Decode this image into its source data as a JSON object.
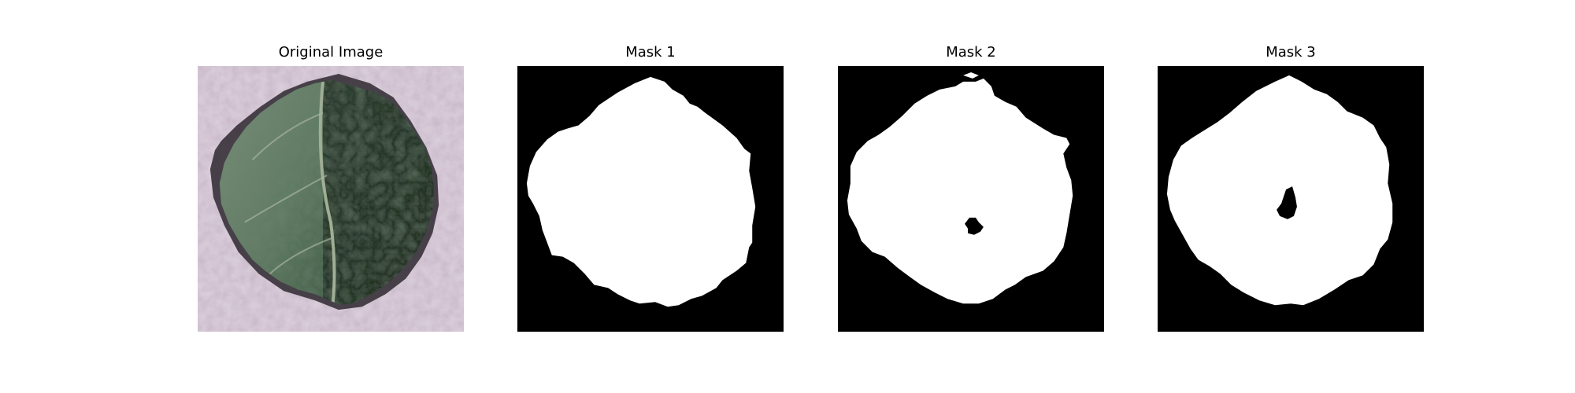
{
  "figure": {
    "panels": [
      {
        "title": "Original Image",
        "kind": "photo",
        "subject": "leaf-photo"
      },
      {
        "title": "Mask 1",
        "kind": "mask",
        "mask_color": "#ffffff",
        "background_color": "#000000",
        "has_hole": false
      },
      {
        "title": "Mask 2",
        "kind": "mask",
        "mask_color": "#ffffff",
        "background_color": "#000000",
        "has_hole": true
      },
      {
        "title": "Mask 3",
        "kind": "mask",
        "mask_color": "#ffffff",
        "background_color": "#000000",
        "has_hole": true
      }
    ]
  }
}
